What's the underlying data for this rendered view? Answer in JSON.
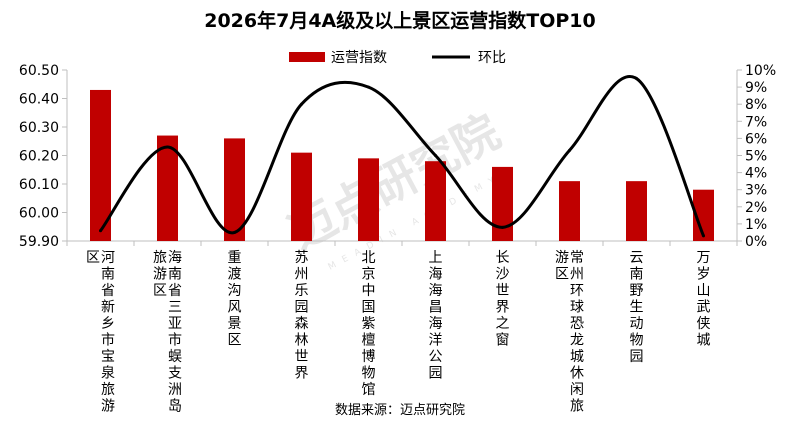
{
  "chart_data": {
    "type": "bar",
    "title": "2026年7月4A级及以上景区运营指数TOP10",
    "categories": [
      [
        "河南省新乡市宝泉旅游",
        "区"
      ],
      [
        "海南省三亚市蜈支洲岛",
        "旅游区"
      ],
      [
        "重渡沟风景区"
      ],
      [
        "苏州乐园森林世界"
      ],
      [
        "北京中国紫檀博物馆"
      ],
      [
        "上海海昌海洋公园"
      ],
      [
        "长沙世界之窗"
      ],
      [
        "常州环球恐龙城休闲旅",
        "游区"
      ],
      [
        "云南野生动物园"
      ],
      [
        "万岁山武侠城"
      ]
    ],
    "series": [
      {
        "name": "运营指数",
        "type": "bar",
        "axis": "left",
        "color": "#c00000",
        "values": [
          60.43,
          60.27,
          60.26,
          60.21,
          60.19,
          60.18,
          60.16,
          60.11,
          60.11,
          60.08
        ]
      },
      {
        "name": "环比",
        "type": "line",
        "smooth": true,
        "axis": "right",
        "color": "#000000",
        "values": [
          0.006,
          0.055,
          0.005,
          0.08,
          0.09,
          0.05,
          0.008,
          0.053,
          0.095,
          0.003
        ]
      }
    ],
    "y_left": {
      "min": 59.9,
      "max": 60.5,
      "step": 0.1,
      "ticks": [
        "59.90",
        "60.00",
        "60.10",
        "60.20",
        "60.30",
        "60.40",
        "60.50"
      ]
    },
    "y_right": {
      "min": 0,
      "max": 0.1,
      "step": 0.01,
      "ticks": [
        "0%",
        "1%",
        "2%",
        "3%",
        "4%",
        "5%",
        "6%",
        "7%",
        "8%",
        "9%",
        "10%"
      ]
    },
    "legend_position": "top",
    "grid": false
  },
  "watermark": {
    "text": "迈点研究院",
    "text_en": "MEADIN ACADEMY"
  },
  "source_note": "数据来源：迈点研究院"
}
